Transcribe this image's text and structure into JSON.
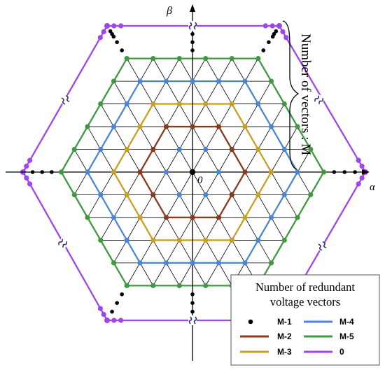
{
  "axes": {
    "x_label": "α",
    "y_label": "β",
    "origin_label": "0"
  },
  "side_note": "Number of vectors : M",
  "legend": {
    "title_line1": "Number of redundant",
    "title_line2": "voltage vectors",
    "entries": [
      {
        "label": "M-1",
        "color": "#000000",
        "marker": "dot"
      },
      {
        "label": "M-2",
        "color": "#8b3a1c",
        "marker": "line"
      },
      {
        "label": "M-3",
        "color": "#c8a024",
        "marker": "line"
      },
      {
        "label": "M-4",
        "color": "#4a86d8",
        "marker": "line"
      },
      {
        "label": "M-5",
        "color": "#3f9a3f",
        "marker": "line"
      },
      {
        "label": "0",
        "color": "#a044f0",
        "marker": "line"
      }
    ]
  },
  "colors": {
    "grid": "#000000",
    "hex_m2": "#8b3a1c",
    "hex_m3": "#c8a024",
    "hex_m4": "#4a86d8",
    "hex_m5": "#3f9a3f",
    "hex_outer": "#a044f0",
    "break_mark": "#2a2a6a"
  }
}
